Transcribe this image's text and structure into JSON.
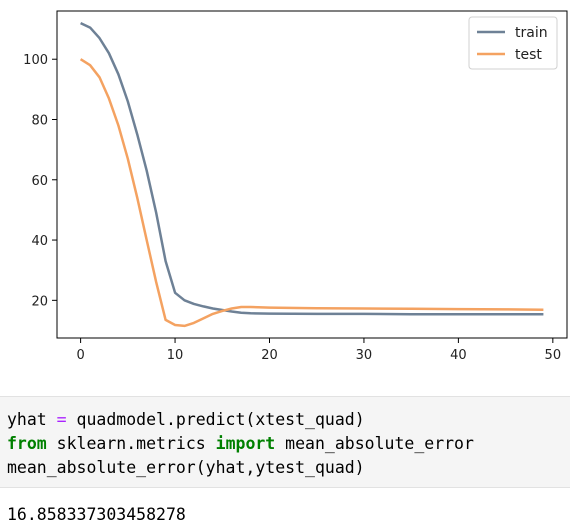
{
  "chart_data": {
    "type": "line",
    "title": "",
    "xlabel": "",
    "ylabel": "",
    "xlim": [
      -2.5,
      51.5
    ],
    "ylim": [
      7.5,
      116
    ],
    "xticks": [
      0,
      10,
      20,
      30,
      40,
      50
    ],
    "yticks": [
      20,
      40,
      60,
      80,
      100
    ],
    "grid": false,
    "legend_position": "top-right",
    "series": [
      {
        "name": "train",
        "color": "#6e8196",
        "x": [
          0,
          1,
          2,
          3,
          4,
          5,
          6,
          7,
          8,
          9,
          10,
          11,
          12,
          13,
          14,
          15,
          16,
          17,
          18,
          20,
          25,
          30,
          35,
          40,
          45,
          49
        ],
        "y": [
          112,
          110.5,
          107,
          102,
          95,
          86,
          75,
          63,
          49,
          33,
          22.5,
          20,
          18.8,
          18,
          17.3,
          16.8,
          16.3,
          15.9,
          15.7,
          15.6,
          15.5,
          15.5,
          15.4,
          15.4,
          15.4,
          15.4
        ]
      },
      {
        "name": "test",
        "color": "#f4a261",
        "x": [
          0,
          1,
          2,
          3,
          4,
          5,
          6,
          7,
          8,
          9,
          10,
          11,
          12,
          13,
          14,
          15,
          16,
          17,
          18,
          20,
          25,
          30,
          35,
          40,
          45,
          49
        ],
        "y": [
          100,
          98,
          94,
          87,
          78,
          67,
          54,
          40,
          26,
          13.5,
          11.8,
          11.5,
          12.5,
          14,
          15.5,
          16.5,
          17.3,
          17.8,
          17.8,
          17.6,
          17.4,
          17.3,
          17.2,
          17.1,
          17.0,
          16.9
        ]
      }
    ]
  },
  "code_cell": {
    "line1_plain": "yhat ",
    "line1_op": "=",
    "line1_rest": " quadmodel.predict(xtest_quad)",
    "line2_kw1": "from",
    "line2_mid": " sklearn.metrics ",
    "line2_kw2": "import",
    "line2_rest": " mean_absolute_error",
    "line3": "mean_absolute_error(yhat,ytest_quad)"
  },
  "output_cell": {
    "value": "16.858337303458278"
  }
}
